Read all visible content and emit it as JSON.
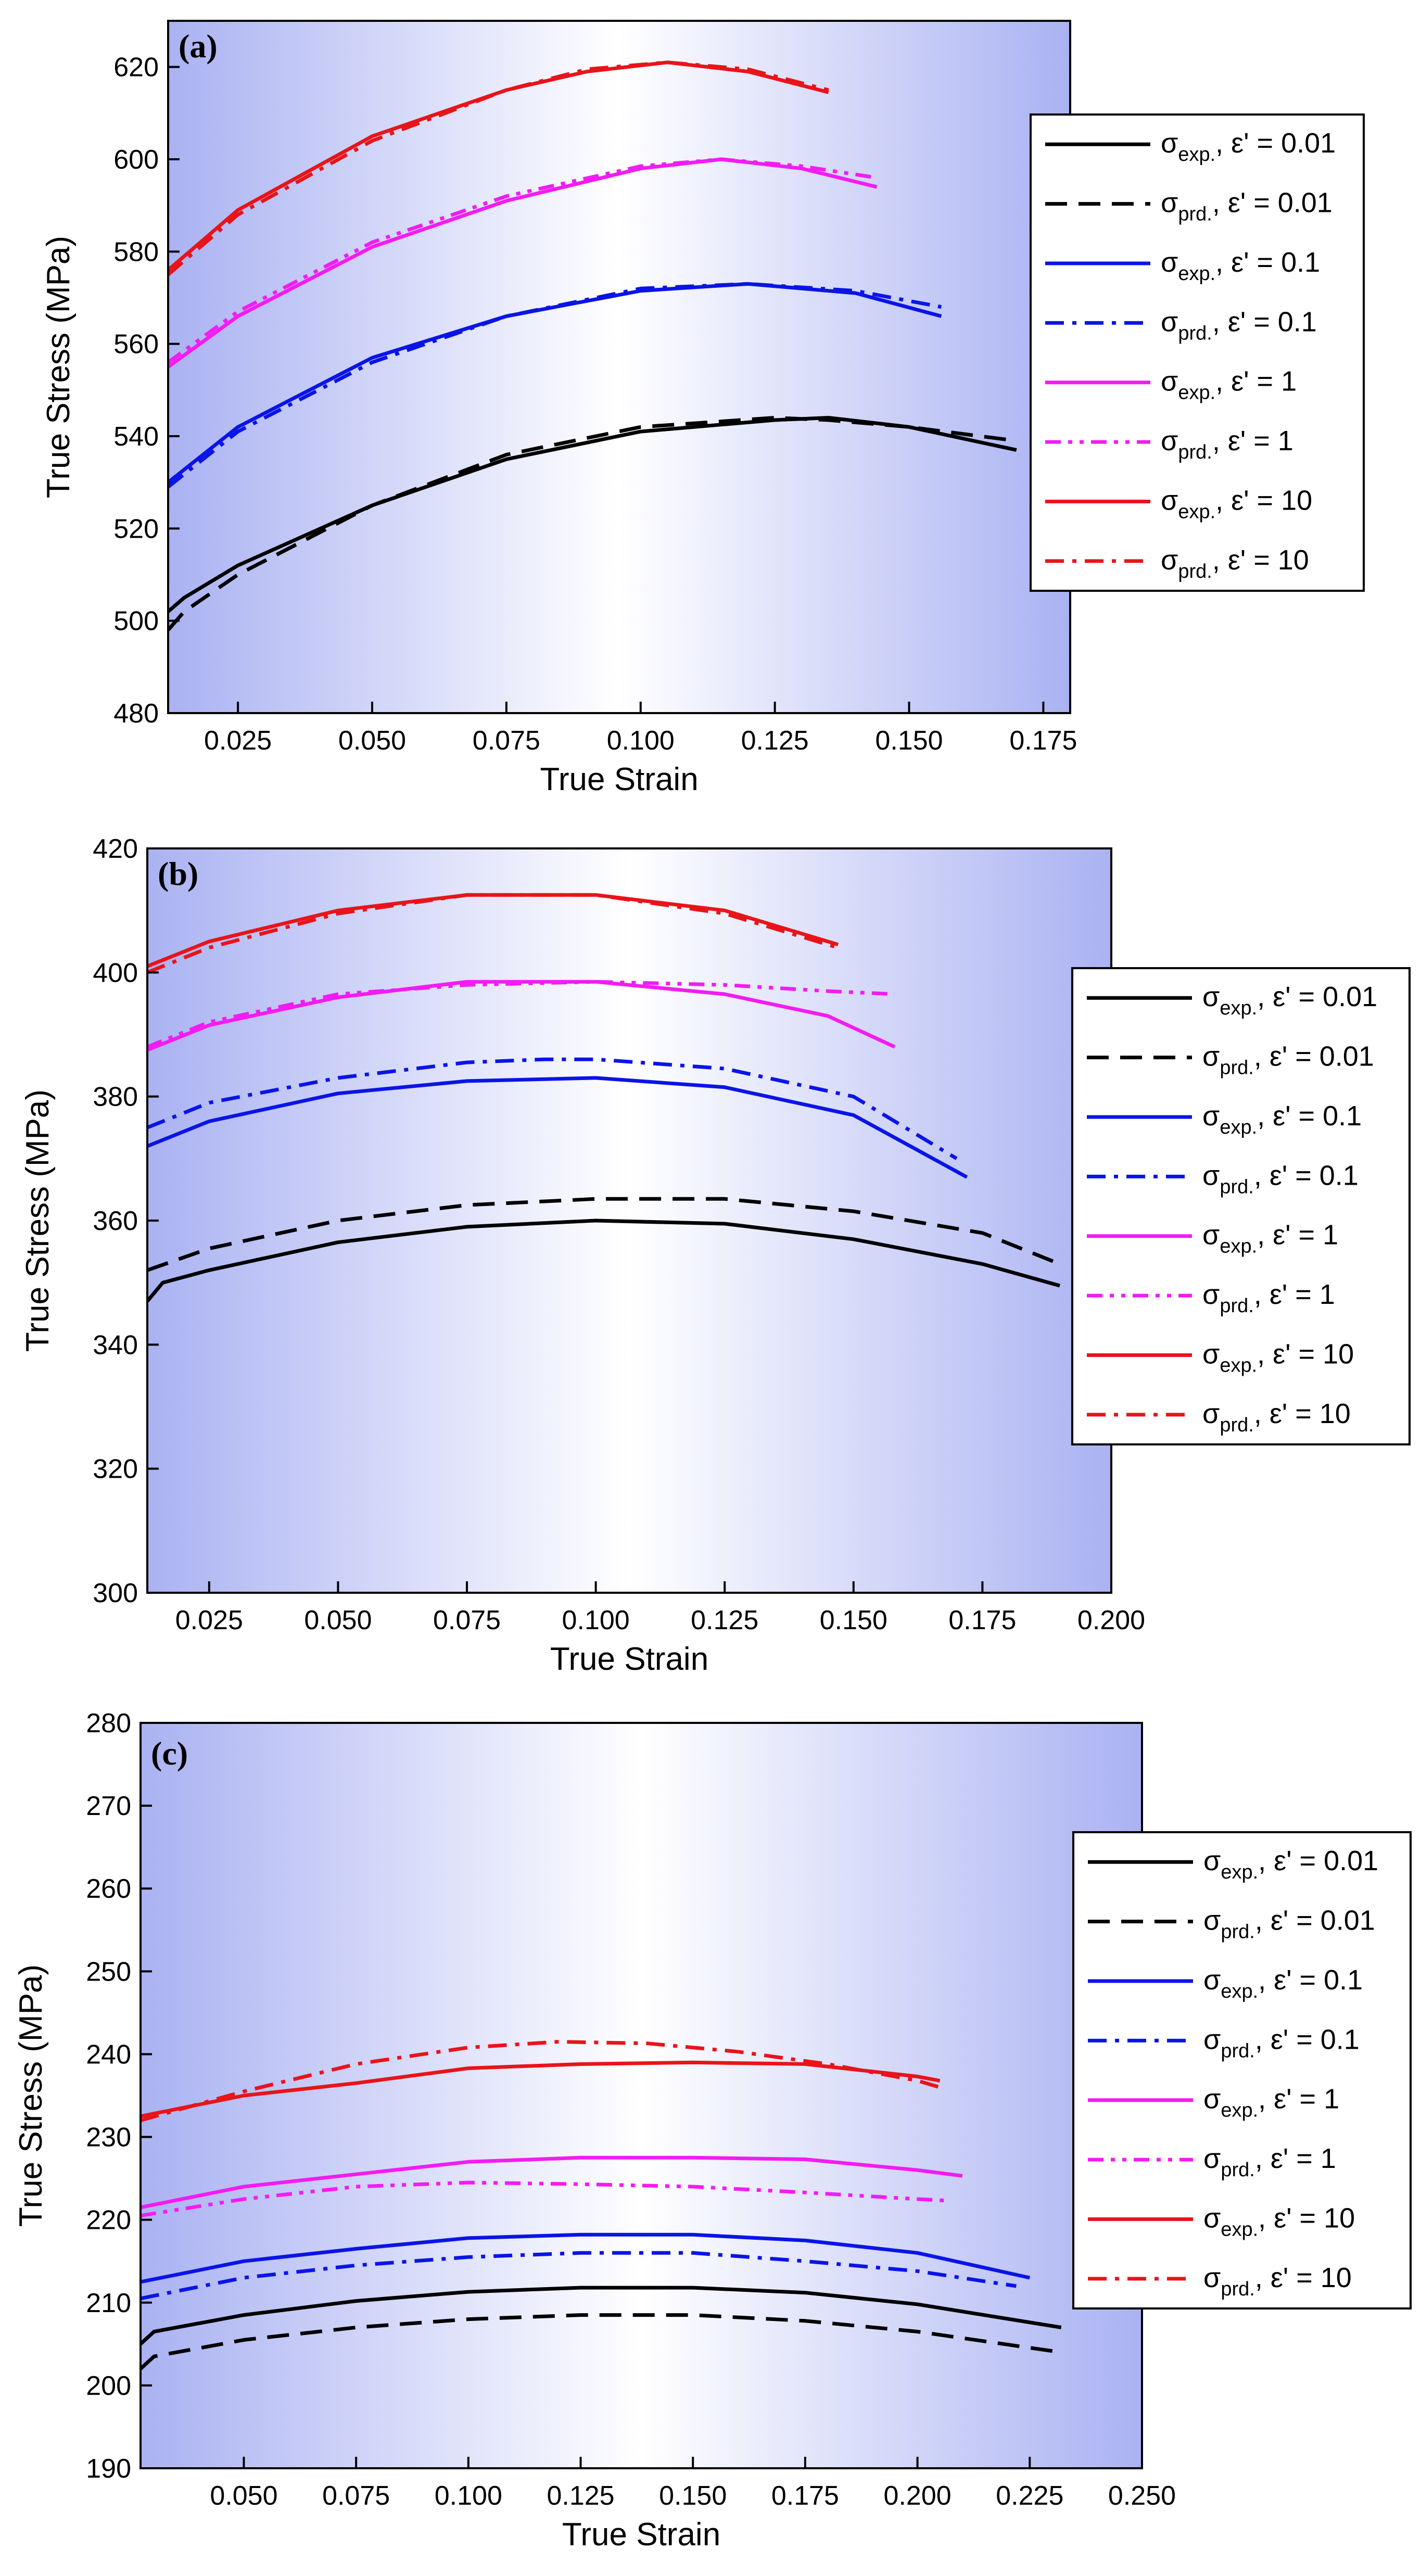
{
  "legend_prefix": {
    "exp": "σ",
    "exp_sub": "exp.",
    "prd": "σ",
    "prd_sub": "prd.",
    "rate_symbol": "ε'"
  },
  "colors": {
    "r001": "#000000",
    "r01": "#0a14e6",
    "r1": "#f21cf2",
    "r10": "#e8141a",
    "bg_edge": "#aab2f2",
    "bg_center": "#ffffff"
  },
  "chart_data": [
    {
      "panel_label": "(a)",
      "type": "line",
      "xlabel": "True Strain",
      "ylabel": "True Stress (MPa)",
      "xlim": [
        0.012,
        0.18
      ],
      "ylim": [
        480,
        630
      ],
      "xticks": [
        0.025,
        0.05,
        0.075,
        0.1,
        0.125,
        0.15,
        0.175
      ],
      "xtick_labels": [
        "0.025",
        "0.050",
        "0.075",
        "0.100",
        "0.125",
        "0.150",
        "0.175"
      ],
      "yticks": [
        480,
        500,
        520,
        540,
        560,
        580,
        600,
        620
      ],
      "ytick_labels": [
        "480",
        "500",
        "520",
        "540",
        "560",
        "580",
        "600",
        "620"
      ],
      "legend_position": "right",
      "series": [
        {
          "kind": "exp",
          "rate": "0.01",
          "color": "#000000",
          "style": "solid",
          "x": [
            0.012,
            0.015,
            0.025,
            0.05,
            0.075,
            0.1,
            0.125,
            0.135,
            0.15,
            0.17
          ],
          "y": [
            502,
            505,
            512,
            525,
            535,
            541,
            543.5,
            544,
            542,
            537
          ]
        },
        {
          "kind": "prd",
          "rate": "0.01",
          "color": "#000000",
          "style": "dash",
          "x": [
            0.012,
            0.015,
            0.025,
            0.05,
            0.075,
            0.1,
            0.125,
            0.135,
            0.15,
            0.17
          ],
          "y": [
            498,
            502,
            510,
            525,
            536,
            542,
            544,
            543.5,
            542,
            539
          ]
        },
        {
          "kind": "exp",
          "rate": "0.1",
          "color": "#0a14e6",
          "style": "solid",
          "x": [
            0.012,
            0.025,
            0.05,
            0.075,
            0.1,
            0.12,
            0.14,
            0.156
          ],
          "y": [
            530,
            542,
            557,
            566,
            571.5,
            573,
            571,
            566
          ]
        },
        {
          "kind": "prd",
          "rate": "0.1",
          "color": "#0a14e6",
          "style": "dashdot",
          "x": [
            0.012,
            0.025,
            0.05,
            0.075,
            0.1,
            0.12,
            0.14,
            0.156
          ],
          "y": [
            529,
            541,
            556,
            566,
            572,
            573,
            571.5,
            568
          ]
        },
        {
          "kind": "exp",
          "rate": "1",
          "color": "#f21cf2",
          "style": "solid",
          "x": [
            0.012,
            0.025,
            0.05,
            0.075,
            0.1,
            0.115,
            0.13,
            0.144
          ],
          "y": [
            555,
            566,
            581,
            591,
            598,
            600,
            598,
            594
          ]
        },
        {
          "kind": "prd",
          "rate": "1",
          "color": "#f21cf2",
          "style": "dashdot2",
          "x": [
            0.012,
            0.025,
            0.05,
            0.075,
            0.1,
            0.115,
            0.13,
            0.144
          ],
          "y": [
            556,
            567,
            582,
            592,
            598.5,
            600,
            598.5,
            596
          ]
        },
        {
          "kind": "exp",
          "rate": "10",
          "color": "#e8141a",
          "style": "solid",
          "x": [
            0.012,
            0.025,
            0.05,
            0.075,
            0.09,
            0.105,
            0.12,
            0.135
          ],
          "y": [
            576,
            589,
            605,
            615,
            619,
            621,
            619,
            614.5
          ]
        },
        {
          "kind": "prd",
          "rate": "10",
          "color": "#e8141a",
          "style": "dashdot",
          "x": [
            0.012,
            0.025,
            0.05,
            0.075,
            0.09,
            0.105,
            0.12,
            0.135
          ],
          "y": [
            575,
            588,
            604,
            615,
            619.5,
            621,
            619.5,
            615
          ]
        }
      ]
    },
    {
      "panel_label": "(b)",
      "type": "line",
      "xlabel": "True Strain",
      "ylabel": "True Stress (MPa)",
      "xlim": [
        0.013,
        0.2
      ],
      "ylim": [
        300,
        420
      ],
      "xticks": [
        0.025,
        0.05,
        0.075,
        0.1,
        0.125,
        0.15,
        0.175,
        0.2
      ],
      "xtick_labels": [
        "0.025",
        "0.050",
        "0.075",
        "0.100",
        "0.125",
        "0.150",
        "0.175",
        "0.200"
      ],
      "yticks": [
        300,
        320,
        340,
        360,
        380,
        400,
        420
      ],
      "ytick_labels": [
        "300",
        "320",
        "340",
        "360",
        "380",
        "400",
        "420"
      ],
      "legend_position": "right",
      "series": [
        {
          "kind": "exp",
          "rate": "0.01",
          "color": "#000000",
          "style": "solid",
          "x": [
            0.013,
            0.016,
            0.025,
            0.05,
            0.075,
            0.1,
            0.125,
            0.15,
            0.175,
            0.19
          ],
          "y": [
            347,
            350,
            352,
            356.5,
            359,
            360,
            359.5,
            357,
            353,
            349.5
          ]
        },
        {
          "kind": "prd",
          "rate": "0.01",
          "color": "#000000",
          "style": "dash",
          "x": [
            0.013,
            0.025,
            0.05,
            0.075,
            0.1,
            0.125,
            0.15,
            0.175,
            0.19
          ],
          "y": [
            352,
            355.5,
            360,
            362.5,
            363.5,
            363.5,
            361.5,
            358,
            353
          ]
        },
        {
          "kind": "exp",
          "rate": "0.1",
          "color": "#0a14e6",
          "style": "solid",
          "x": [
            0.013,
            0.025,
            0.05,
            0.075,
            0.1,
            0.125,
            0.15,
            0.172
          ],
          "y": [
            372,
            376,
            380.5,
            382.5,
            383,
            381.5,
            377,
            367
          ]
        },
        {
          "kind": "prd",
          "rate": "0.1",
          "color": "#0a14e6",
          "style": "dashdot",
          "x": [
            0.013,
            0.025,
            0.05,
            0.075,
            0.09,
            0.1,
            0.125,
            0.15,
            0.17
          ],
          "y": [
            375,
            379,
            383,
            385.5,
            386,
            386,
            384.5,
            380,
            370
          ]
        },
        {
          "kind": "exp",
          "rate": "1",
          "color": "#f21cf2",
          "style": "solid",
          "x": [
            0.013,
            0.025,
            0.05,
            0.075,
            0.1,
            0.125,
            0.145,
            0.158
          ],
          "y": [
            387.5,
            391.5,
            396,
            398.5,
            398.5,
            396.5,
            393,
            388
          ]
        },
        {
          "kind": "prd",
          "rate": "1",
          "color": "#f21cf2",
          "style": "dashdot2",
          "x": [
            0.013,
            0.025,
            0.05,
            0.075,
            0.1,
            0.125,
            0.145,
            0.158
          ],
          "y": [
            388,
            392,
            396.5,
            398,
            398.5,
            398,
            397,
            396.5
          ]
        },
        {
          "kind": "exp",
          "rate": "10",
          "color": "#e8141a",
          "style": "solid",
          "x": [
            0.013,
            0.025,
            0.05,
            0.075,
            0.1,
            0.125,
            0.147
          ],
          "y": [
            401,
            405,
            410,
            412.5,
            412.5,
            410,
            404.5
          ]
        },
        {
          "kind": "prd",
          "rate": "10",
          "color": "#e8141a",
          "style": "dashdot",
          "x": [
            0.013,
            0.025,
            0.05,
            0.075,
            0.1,
            0.125,
            0.147
          ],
          "y": [
            400,
            404,
            409.5,
            412.5,
            412.5,
            409.5,
            404
          ]
        }
      ]
    },
    {
      "panel_label": "(c)",
      "type": "line",
      "xlabel": "True Strain",
      "ylabel": "True Stress (MPa)",
      "xlim": [
        0.027,
        0.25
      ],
      "ylim": [
        190,
        280
      ],
      "xticks": [
        0.05,
        0.075,
        0.1,
        0.125,
        0.15,
        0.175,
        0.2,
        0.225,
        0.25
      ],
      "xtick_labels": [
        "0.050",
        "0.075",
        "0.100",
        "0.125",
        "0.150",
        "0.175",
        "0.200",
        "0.225",
        "0.250"
      ],
      "yticks": [
        190,
        200,
        210,
        220,
        230,
        240,
        250,
        260,
        270,
        280
      ],
      "ytick_labels": [
        "190",
        "200",
        "210",
        "220",
        "230",
        "240",
        "250",
        "260",
        "270",
        "280"
      ],
      "legend_position": "right",
      "series": [
        {
          "kind": "exp",
          "rate": "0.01",
          "color": "#000000",
          "style": "solid",
          "x": [
            0.027,
            0.03,
            0.05,
            0.075,
            0.1,
            0.125,
            0.15,
            0.175,
            0.2,
            0.232
          ],
          "y": [
            205,
            206.5,
            208.5,
            210.2,
            211.3,
            211.8,
            211.8,
            211.2,
            209.8,
            207
          ]
        },
        {
          "kind": "prd",
          "rate": "0.01",
          "color": "#000000",
          "style": "dash",
          "x": [
            0.027,
            0.03,
            0.05,
            0.075,
            0.1,
            0.125,
            0.15,
            0.175,
            0.2,
            0.232
          ],
          "y": [
            202,
            203.5,
            205.5,
            207,
            208,
            208.5,
            208.5,
            207.8,
            206.5,
            204
          ]
        },
        {
          "kind": "exp",
          "rate": "0.1",
          "color": "#0a14e6",
          "style": "solid",
          "x": [
            0.027,
            0.05,
            0.075,
            0.1,
            0.125,
            0.15,
            0.175,
            0.2,
            0.225
          ],
          "y": [
            212.5,
            215,
            216.5,
            217.8,
            218.2,
            218.2,
            217.5,
            216,
            213
          ]
        },
        {
          "kind": "prd",
          "rate": "0.1",
          "color": "#0a14e6",
          "style": "dashdot",
          "x": [
            0.027,
            0.05,
            0.075,
            0.1,
            0.125,
            0.15,
            0.175,
            0.2,
            0.222
          ],
          "y": [
            210.5,
            213,
            214.5,
            215.5,
            216,
            216,
            215,
            213.8,
            212
          ]
        },
        {
          "kind": "exp",
          "rate": "1",
          "color": "#f21cf2",
          "style": "solid",
          "x": [
            0.027,
            0.05,
            0.075,
            0.1,
            0.125,
            0.15,
            0.175,
            0.2,
            0.21
          ],
          "y": [
            221.5,
            224,
            225.5,
            227,
            227.5,
            227.5,
            227.3,
            226,
            225.3
          ]
        },
        {
          "kind": "prd",
          "rate": "1",
          "color": "#f21cf2",
          "style": "dashdot2",
          "x": [
            0.027,
            0.05,
            0.075,
            0.1,
            0.125,
            0.15,
            0.175,
            0.2,
            0.207
          ],
          "y": [
            220.5,
            222.5,
            224,
            224.5,
            224.3,
            224,
            223.3,
            222.5,
            222.3
          ]
        },
        {
          "kind": "exp",
          "rate": "10",
          "color": "#e8141a",
          "style": "solid",
          "x": [
            0.027,
            0.05,
            0.075,
            0.1,
            0.125,
            0.15,
            0.175,
            0.2,
            0.205
          ],
          "y": [
            232.5,
            235,
            236.5,
            238.3,
            238.8,
            239,
            238.8,
            237.3,
            236.8
          ]
        },
        {
          "kind": "prd",
          "rate": "10",
          "color": "#e8141a",
          "style": "dashdot",
          "x": [
            0.027,
            0.05,
            0.075,
            0.1,
            0.12,
            0.14,
            0.16,
            0.18,
            0.2,
            0.205
          ],
          "y": [
            232,
            235.5,
            238.8,
            240.8,
            241.5,
            241.3,
            240.3,
            238.8,
            236.8,
            236
          ]
        }
      ]
    }
  ]
}
